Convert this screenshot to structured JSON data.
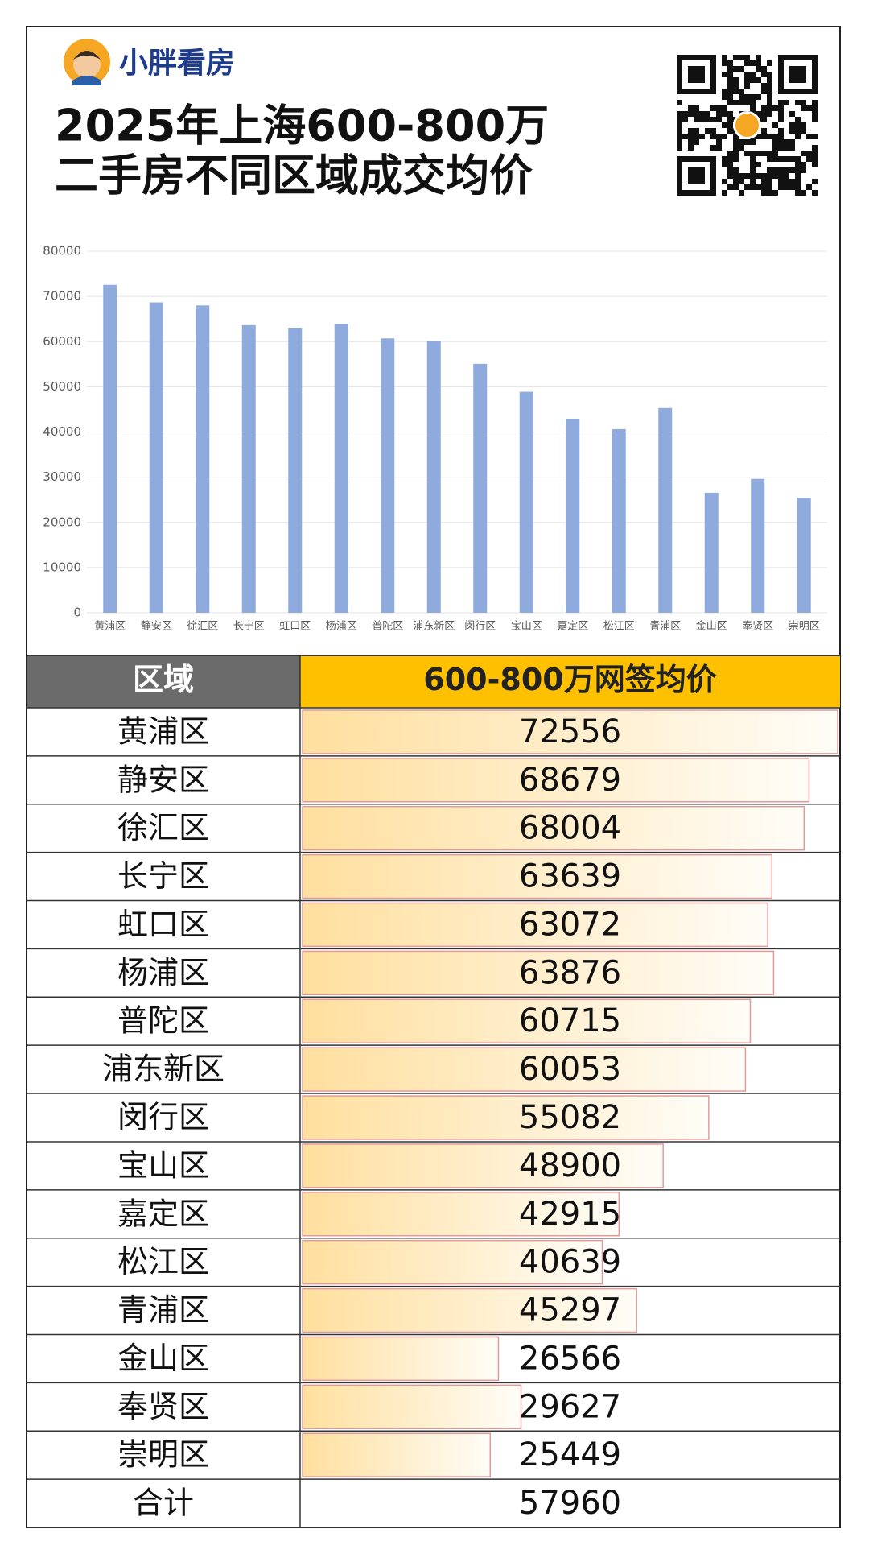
{
  "brand": "小胖看房",
  "title_lines": [
    "2025年上海600-800万",
    "二手房不同区域成交均价"
  ],
  "chart_data": {
    "type": "bar",
    "categories": [
      "黄浦区",
      "静安区",
      "徐汇区",
      "长宁区",
      "虹口区",
      "杨浦区",
      "普陀区",
      "浦东新区",
      "闵行区",
      "宝山区",
      "嘉定区",
      "松江区",
      "青浦区",
      "金山区",
      "奉贤区",
      "崇明区"
    ],
    "values": [
      72556,
      68679,
      68004,
      63639,
      63072,
      63876,
      60715,
      60053,
      55082,
      48900,
      42915,
      40639,
      45297,
      26566,
      29627,
      25449
    ],
    "color": "#8faadc",
    "ylim": [
      0,
      80000
    ],
    "yticks": [
      0,
      10000,
      20000,
      30000,
      40000,
      50000,
      60000,
      70000,
      80000
    ],
    "grid": true
  },
  "table": {
    "headers": [
      "区域",
      "600-800万网签均价"
    ],
    "total": [
      "合计",
      57960
    ]
  }
}
